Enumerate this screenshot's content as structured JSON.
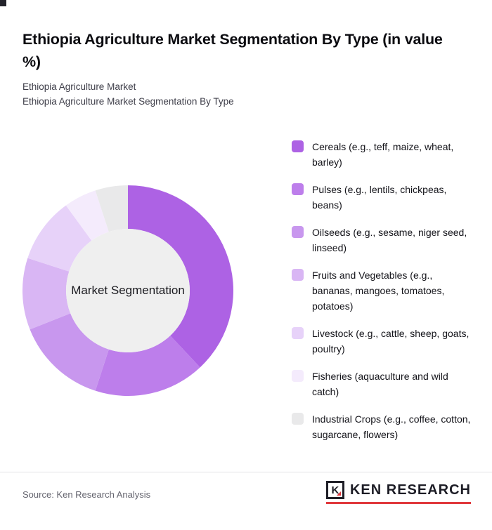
{
  "page": {
    "title": "Ethiopia Agriculture Market Segmentation By Type (in value %)",
    "subtitles": [
      "Ethiopia Agriculture Market",
      "Ethiopia Agriculture Market Segmentation By Type"
    ]
  },
  "chart_data": {
    "type": "pie",
    "variant": "donut",
    "title": "Ethiopia Agriculture Market Segmentation By Type (in value %)",
    "center_label": "Market Segmentation",
    "legend_position": "right",
    "units": "value %",
    "categories": [
      "Cereals (e.g., teff, maize, wheat, barley)",
      "Pulses (e.g., lentils, chickpeas, beans)",
      "Oilseeds (e.g., sesame, niger seed, linseed)",
      "Fruits and Vegetables (e.g., bananas, mangoes, tomatoes, potatoes)",
      "Livestock (e.g., cattle, sheep, goats, poultry)",
      "Fisheries (aquaculture and wild catch)",
      "Industrial Crops (e.g., coffee, cotton, sugarcane, flowers)"
    ],
    "values": [
      38,
      17,
      14,
      11,
      10,
      5,
      5
    ],
    "colors": [
      "#ad62e4",
      "#bd7eeb",
      "#c897ee",
      "#d9b6f4",
      "#e7d2f9",
      "#f4ebfc",
      "#e9e9ea"
    ],
    "hole_color": "#efefef"
  },
  "footer": {
    "source": "Source: Ken Research Analysis",
    "logo_letter": "K",
    "logo_text": "KEN RESEARCH",
    "logo_accent_color": "#e0393d"
  }
}
